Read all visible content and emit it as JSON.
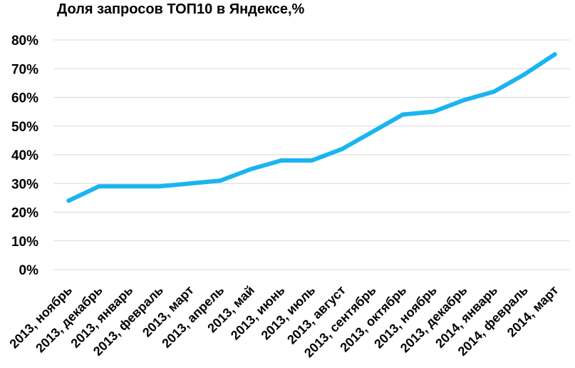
{
  "chart_data": {
    "type": "line",
    "title": "Доля запросов ТОП10 в Яндексе,%",
    "categories": [
      "2013, ноябрь",
      "2013, декабрь",
      "2013, январь",
      "2013, февраль",
      "2013, март",
      "2013, апрель",
      "2013, май",
      "2013, июнь",
      "2013, июль",
      "2013, август",
      "2013, сентябрь",
      "2013, октябрь",
      "2013, ноябрь",
      "2013, декабрь",
      "2014, январь",
      "2014, февраль",
      "2014, март"
    ],
    "series": [
      {
        "name": "",
        "values": [
          24,
          29,
          29,
          29,
          30,
          31,
          35,
          38,
          38,
          42,
          48,
          54,
          55,
          59,
          62,
          68,
          75
        ]
      }
    ],
    "ylim": [
      0,
      80
    ],
    "yticks": [
      "0%",
      "10%",
      "20%",
      "30%",
      "40%",
      "50%",
      "60%",
      "70%",
      "80%"
    ],
    "grid": true,
    "line_color": "#1ab4f0"
  }
}
